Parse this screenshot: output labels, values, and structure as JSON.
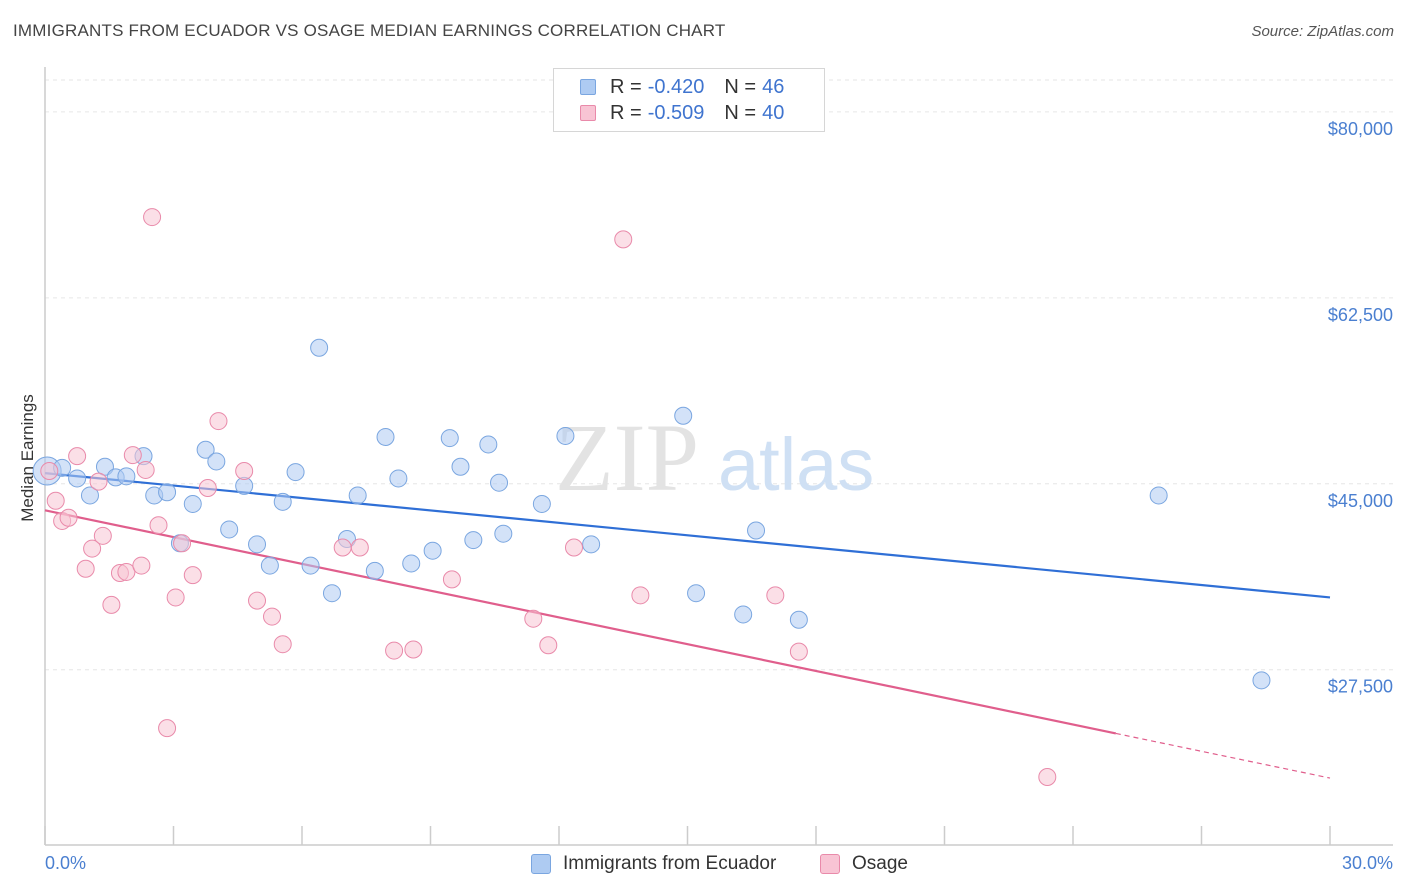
{
  "header": {
    "title": "IMMIGRANTS FROM ECUADOR VS OSAGE MEDIAN EARNINGS CORRELATION CHART",
    "source": "Source: ZipAtlas.com"
  },
  "watermark": {
    "zip": "ZIP",
    "atlas": "atlas"
  },
  "legend": {
    "r_label": "R =",
    "n_label": "N =",
    "rows": [
      {
        "r": "-0.420",
        "n": "46",
        "color": "#aecbf2",
        "border": "#7aa6e0"
      },
      {
        "r": "-0.509",
        "n": "40",
        "color": "#f8c4d4",
        "border": "#e98aaa"
      }
    ]
  },
  "chart_data": {
    "type": "scatter",
    "title": "IMMIGRANTS FROM ECUADOR VS OSAGE MEDIAN EARNINGS CORRELATION CHART",
    "xlabel": "",
    "ylabel": "Median Earnings",
    "xlim": [
      0,
      30
    ],
    "ylim": [
      11000,
      83000
    ],
    "x_tick_labels": [
      "0.0%",
      "30.0%"
    ],
    "y_ticks": [
      27500,
      45000,
      62500,
      80000
    ],
    "y_tick_labels": [
      "$27,500",
      "$45,000",
      "$62,500",
      "$80,000"
    ],
    "grid": "horizontal dashed",
    "legend_position": "top-center",
    "series": [
      {
        "name": "Immigrants from Ecuador",
        "color": "#aecbf2",
        "stroke": "#7aa6e0",
        "line_color": "#2f6fd6",
        "trend": {
          "x": [
            0,
            30
          ],
          "y": [
            46000,
            34300
          ]
        },
        "points": [
          [
            0.05,
            46200
          ],
          [
            0.4,
            46500
          ],
          [
            0.75,
            45500
          ],
          [
            1.05,
            43900
          ],
          [
            1.4,
            46600
          ],
          [
            1.65,
            45600
          ],
          [
            1.9,
            45700
          ],
          [
            2.3,
            47600
          ],
          [
            2.55,
            43900
          ],
          [
            2.85,
            44200
          ],
          [
            3.15,
            39400
          ],
          [
            3.45,
            43100
          ],
          [
            3.75,
            48200
          ],
          [
            4.0,
            47100
          ],
          [
            4.3,
            40700
          ],
          [
            4.65,
            44800
          ],
          [
            4.95,
            39300
          ],
          [
            5.25,
            37300
          ],
          [
            5.55,
            43300
          ],
          [
            5.85,
            46100
          ],
          [
            6.2,
            37300
          ],
          [
            6.4,
            57800
          ],
          [
            6.7,
            34700
          ],
          [
            7.05,
            39800
          ],
          [
            7.3,
            43900
          ],
          [
            7.7,
            36800
          ],
          [
            7.95,
            49400
          ],
          [
            8.25,
            45500
          ],
          [
            8.55,
            37500
          ],
          [
            9.05,
            38700
          ],
          [
            9.45,
            49300
          ],
          [
            9.7,
            46600
          ],
          [
            10.0,
            39700
          ],
          [
            10.35,
            48700
          ],
          [
            10.6,
            45100
          ],
          [
            10.7,
            40300
          ],
          [
            11.6,
            43100
          ],
          [
            12.15,
            49500
          ],
          [
            12.75,
            39300
          ],
          [
            14.9,
            51400
          ],
          [
            15.2,
            34700
          ],
          [
            16.3,
            32700
          ],
          [
            16.6,
            40600
          ],
          [
            17.6,
            32200
          ],
          [
            26.0,
            43900
          ],
          [
            28.4,
            26500
          ]
        ]
      },
      {
        "name": "Osage",
        "color": "#f8c4d4",
        "stroke": "#e98aaa",
        "line_color": "#e05e8c",
        "trend": {
          "x": [
            0,
            25.0
          ],
          "y": [
            42500,
            21500
          ]
        },
        "trend_dashed": {
          "x": [
            25.0,
            30
          ],
          "y": [
            21500,
            17300
          ]
        },
        "points": [
          [
            0.1,
            46200
          ],
          [
            0.25,
            43400
          ],
          [
            0.4,
            41500
          ],
          [
            0.55,
            41800
          ],
          [
            0.75,
            47600
          ],
          [
            0.95,
            37000
          ],
          [
            1.1,
            38900
          ],
          [
            1.25,
            45200
          ],
          [
            1.35,
            40100
          ],
          [
            1.55,
            33600
          ],
          [
            1.75,
            36600
          ],
          [
            1.9,
            36700
          ],
          [
            2.05,
            47700
          ],
          [
            2.25,
            37300
          ],
          [
            2.35,
            46300
          ],
          [
            2.5,
            70100
          ],
          [
            2.65,
            41100
          ],
          [
            2.85,
            22000
          ],
          [
            3.05,
            34300
          ],
          [
            3.2,
            39400
          ],
          [
            3.45,
            36400
          ],
          [
            3.8,
            44600
          ],
          [
            4.05,
            50900
          ],
          [
            4.65,
            46200
          ],
          [
            4.95,
            34000
          ],
          [
            5.3,
            32500
          ],
          [
            5.55,
            29900
          ],
          [
            6.95,
            39000
          ],
          [
            7.35,
            39000
          ],
          [
            8.15,
            29300
          ],
          [
            8.6,
            29400
          ],
          [
            9.5,
            36000
          ],
          [
            11.4,
            32300
          ],
          [
            11.75,
            29800
          ],
          [
            12.35,
            39000
          ],
          [
            13.9,
            34500
          ],
          [
            17.05,
            34500
          ],
          [
            17.6,
            29200
          ],
          [
            23.4,
            17400
          ],
          [
            13.5,
            68000
          ]
        ]
      }
    ]
  }
}
